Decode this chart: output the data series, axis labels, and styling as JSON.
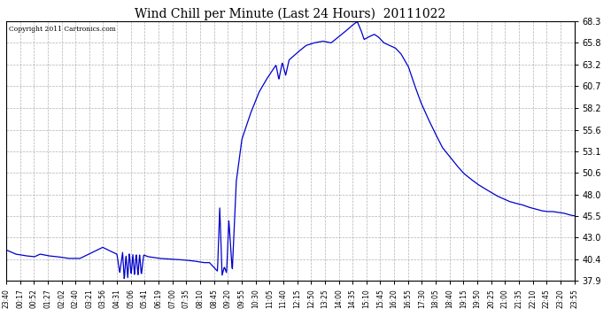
{
  "title": "Wind Chill per Minute (Last 24 Hours)  20111022",
  "copyright": "Copyright 2011 Cartronics.com",
  "line_color": "#0000cc",
  "background_color": "#ffffff",
  "grid_color": "#aaaaaa",
  "yticks": [
    37.9,
    40.4,
    43.0,
    45.5,
    48.0,
    50.6,
    53.1,
    55.6,
    58.2,
    60.7,
    63.2,
    65.8,
    68.3
  ],
  "ymin": 37.9,
  "ymax": 68.3,
  "xtick_labels": [
    "23:40",
    "00:17",
    "00:52",
    "01:27",
    "02:02",
    "02:40",
    "03:21",
    "03:56",
    "04:31",
    "05:06",
    "05:41",
    "06:19",
    "07:00",
    "07:35",
    "08:10",
    "08:45",
    "09:20",
    "09:55",
    "10:30",
    "11:05",
    "11:40",
    "12:15",
    "12:50",
    "13:25",
    "14:00",
    "14:35",
    "15:10",
    "15:45",
    "16:20",
    "16:55",
    "17:30",
    "18:05",
    "18:40",
    "19:15",
    "19:50",
    "20:25",
    "21:00",
    "21:35",
    "22:10",
    "22:45",
    "23:20",
    "23:55"
  ],
  "ctrl_x": [
    0.0,
    0.017,
    0.035,
    0.05,
    0.06,
    0.075,
    0.09,
    0.11,
    0.13,
    0.155,
    0.17,
    0.185,
    0.195,
    0.2,
    0.205,
    0.208,
    0.211,
    0.214,
    0.217,
    0.22,
    0.223,
    0.226,
    0.229,
    0.232,
    0.235,
    0.238,
    0.242,
    0.25,
    0.27,
    0.295,
    0.315,
    0.33,
    0.348,
    0.358,
    0.365,
    0.372,
    0.376,
    0.38,
    0.384,
    0.388,
    0.392,
    0.398,
    0.405,
    0.415,
    0.43,
    0.445,
    0.458,
    0.468,
    0.475,
    0.48,
    0.486,
    0.492,
    0.498,
    0.505,
    0.515,
    0.528,
    0.542,
    0.558,
    0.572,
    0.585,
    0.598,
    0.608,
    0.618,
    0.625,
    0.63,
    0.638,
    0.648,
    0.655,
    0.665,
    0.675,
    0.685,
    0.695,
    0.708,
    0.718,
    0.73,
    0.742,
    0.755,
    0.768,
    0.78,
    0.792,
    0.805,
    0.818,
    0.83,
    0.842,
    0.855,
    0.865,
    0.875,
    0.885,
    0.895,
    0.908,
    0.92,
    0.932,
    0.942,
    0.952,
    0.962,
    0.972,
    0.982,
    0.992,
    1.0
  ],
  "ctrl_y": [
    41.5,
    41.0,
    40.8,
    40.7,
    41.0,
    40.8,
    40.7,
    40.5,
    40.5,
    41.3,
    41.8,
    41.3,
    41.0,
    38.8,
    41.2,
    37.9,
    41.0,
    38.2,
    41.2,
    38.5,
    41.0,
    38.5,
    41.2,
    38.5,
    41.0,
    38.5,
    40.9,
    40.7,
    40.5,
    40.4,
    40.3,
    40.2,
    40.0,
    40.0,
    39.5,
    39.0,
    46.5,
    38.5,
    39.5,
    38.8,
    45.0,
    39.0,
    49.5,
    54.5,
    57.5,
    60.0,
    61.5,
    62.5,
    63.2,
    61.5,
    63.5,
    62.0,
    63.8,
    64.2,
    64.8,
    65.5,
    65.8,
    66.0,
    65.8,
    66.5,
    67.2,
    67.8,
    68.3,
    67.2,
    66.2,
    66.5,
    66.8,
    66.5,
    65.8,
    65.5,
    65.2,
    64.5,
    63.0,
    61.0,
    58.8,
    57.0,
    55.2,
    53.5,
    52.5,
    51.5,
    50.5,
    49.8,
    49.2,
    48.7,
    48.2,
    47.8,
    47.5,
    47.2,
    47.0,
    46.8,
    46.5,
    46.3,
    46.1,
    46.0,
    46.0,
    45.9,
    45.8,
    45.6,
    45.5
  ]
}
